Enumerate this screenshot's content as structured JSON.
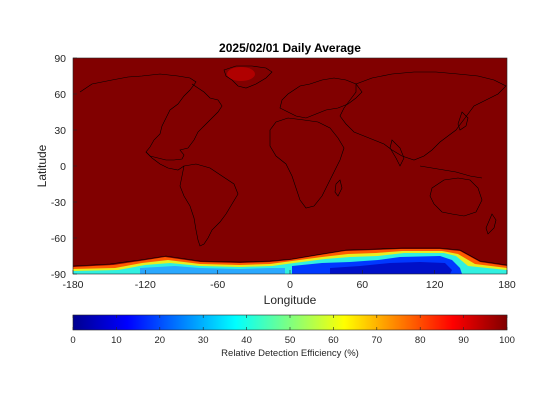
{
  "chart_data": {
    "type": "heatmap",
    "title": "2025/02/01 Daily Average",
    "xlabel": "Longitude",
    "ylabel": "Latitude",
    "xlim": [
      -180,
      180
    ],
    "ylim": [
      -90,
      90
    ],
    "x_ticks": [
      -180,
      -120,
      -60,
      0,
      60,
      120,
      180
    ],
    "y_ticks": [
      90,
      60,
      30,
      0,
      -30,
      -60,
      -90
    ],
    "colorbar": {
      "label": "Relative Detection Efficiency (%)",
      "colormap": "jet",
      "range": [
        0,
        100
      ],
      "ticks": [
        0,
        10,
        20,
        30,
        40,
        50,
        60,
        70,
        80,
        90,
        100
      ],
      "orientation": "horizontal",
      "placement": "bottom"
    },
    "background_value": 100,
    "features": [
      {
        "region": "central Greenland",
        "approx_lon": -40,
        "approx_lat": 73,
        "approx_value": 95
      },
      {
        "region": "East Antarctica",
        "lon_range": [
          0,
          150
        ],
        "lat_range": [
          -90,
          -78
        ],
        "approx_min_value": 5
      },
      {
        "region": "West Antarctica",
        "lon_range": [
          -150,
          -60
        ],
        "lat_range": [
          -90,
          -82
        ],
        "approx_min_value": 35
      }
    ],
    "antarctic_edge_profile": [
      {
        "lon": -180,
        "lat": -84,
        "value": 72
      },
      {
        "lon": -160,
        "lat": -85,
        "value": 70
      },
      {
        "lon": -150,
        "lat": -83,
        "value": 64
      },
      {
        "lon": -140,
        "lat": -81,
        "value": 66
      },
      {
        "lon": -120,
        "lat": -81,
        "value": 50
      },
      {
        "lon": -100,
        "lat": -83,
        "value": 45
      },
      {
        "lon": -80,
        "lat": -84,
        "value": 55
      },
      {
        "lon": -60,
        "lat": -85,
        "value": 60
      },
      {
        "lon": -40,
        "lat": -86,
        "value": 72
      },
      {
        "lon": -20,
        "lat": -85,
        "value": 65
      },
      {
        "lon": 0,
        "lat": -84,
        "value": 40
      },
      {
        "lon": 20,
        "lat": -81,
        "value": 30
      },
      {
        "lon": 40,
        "lat": -79,
        "value": 22
      },
      {
        "lon": 60,
        "lat": -77,
        "value": 18
      },
      {
        "lon": 80,
        "lat": -76,
        "value": 12
      },
      {
        "lon": 100,
        "lat": -75,
        "value": 8
      },
      {
        "lon": 120,
        "lat": -75,
        "value": 8
      },
      {
        "lon": 140,
        "lat": -76,
        "value": 15
      },
      {
        "lon": 150,
        "lat": -79,
        "value": 40
      },
      {
        "lon": 160,
        "lat": -82,
        "value": 60
      },
      {
        "lon": 170,
        "lat": -83,
        "value": 65
      },
      {
        "lon": 180,
        "lat": -84,
        "value": 70
      }
    ]
  }
}
